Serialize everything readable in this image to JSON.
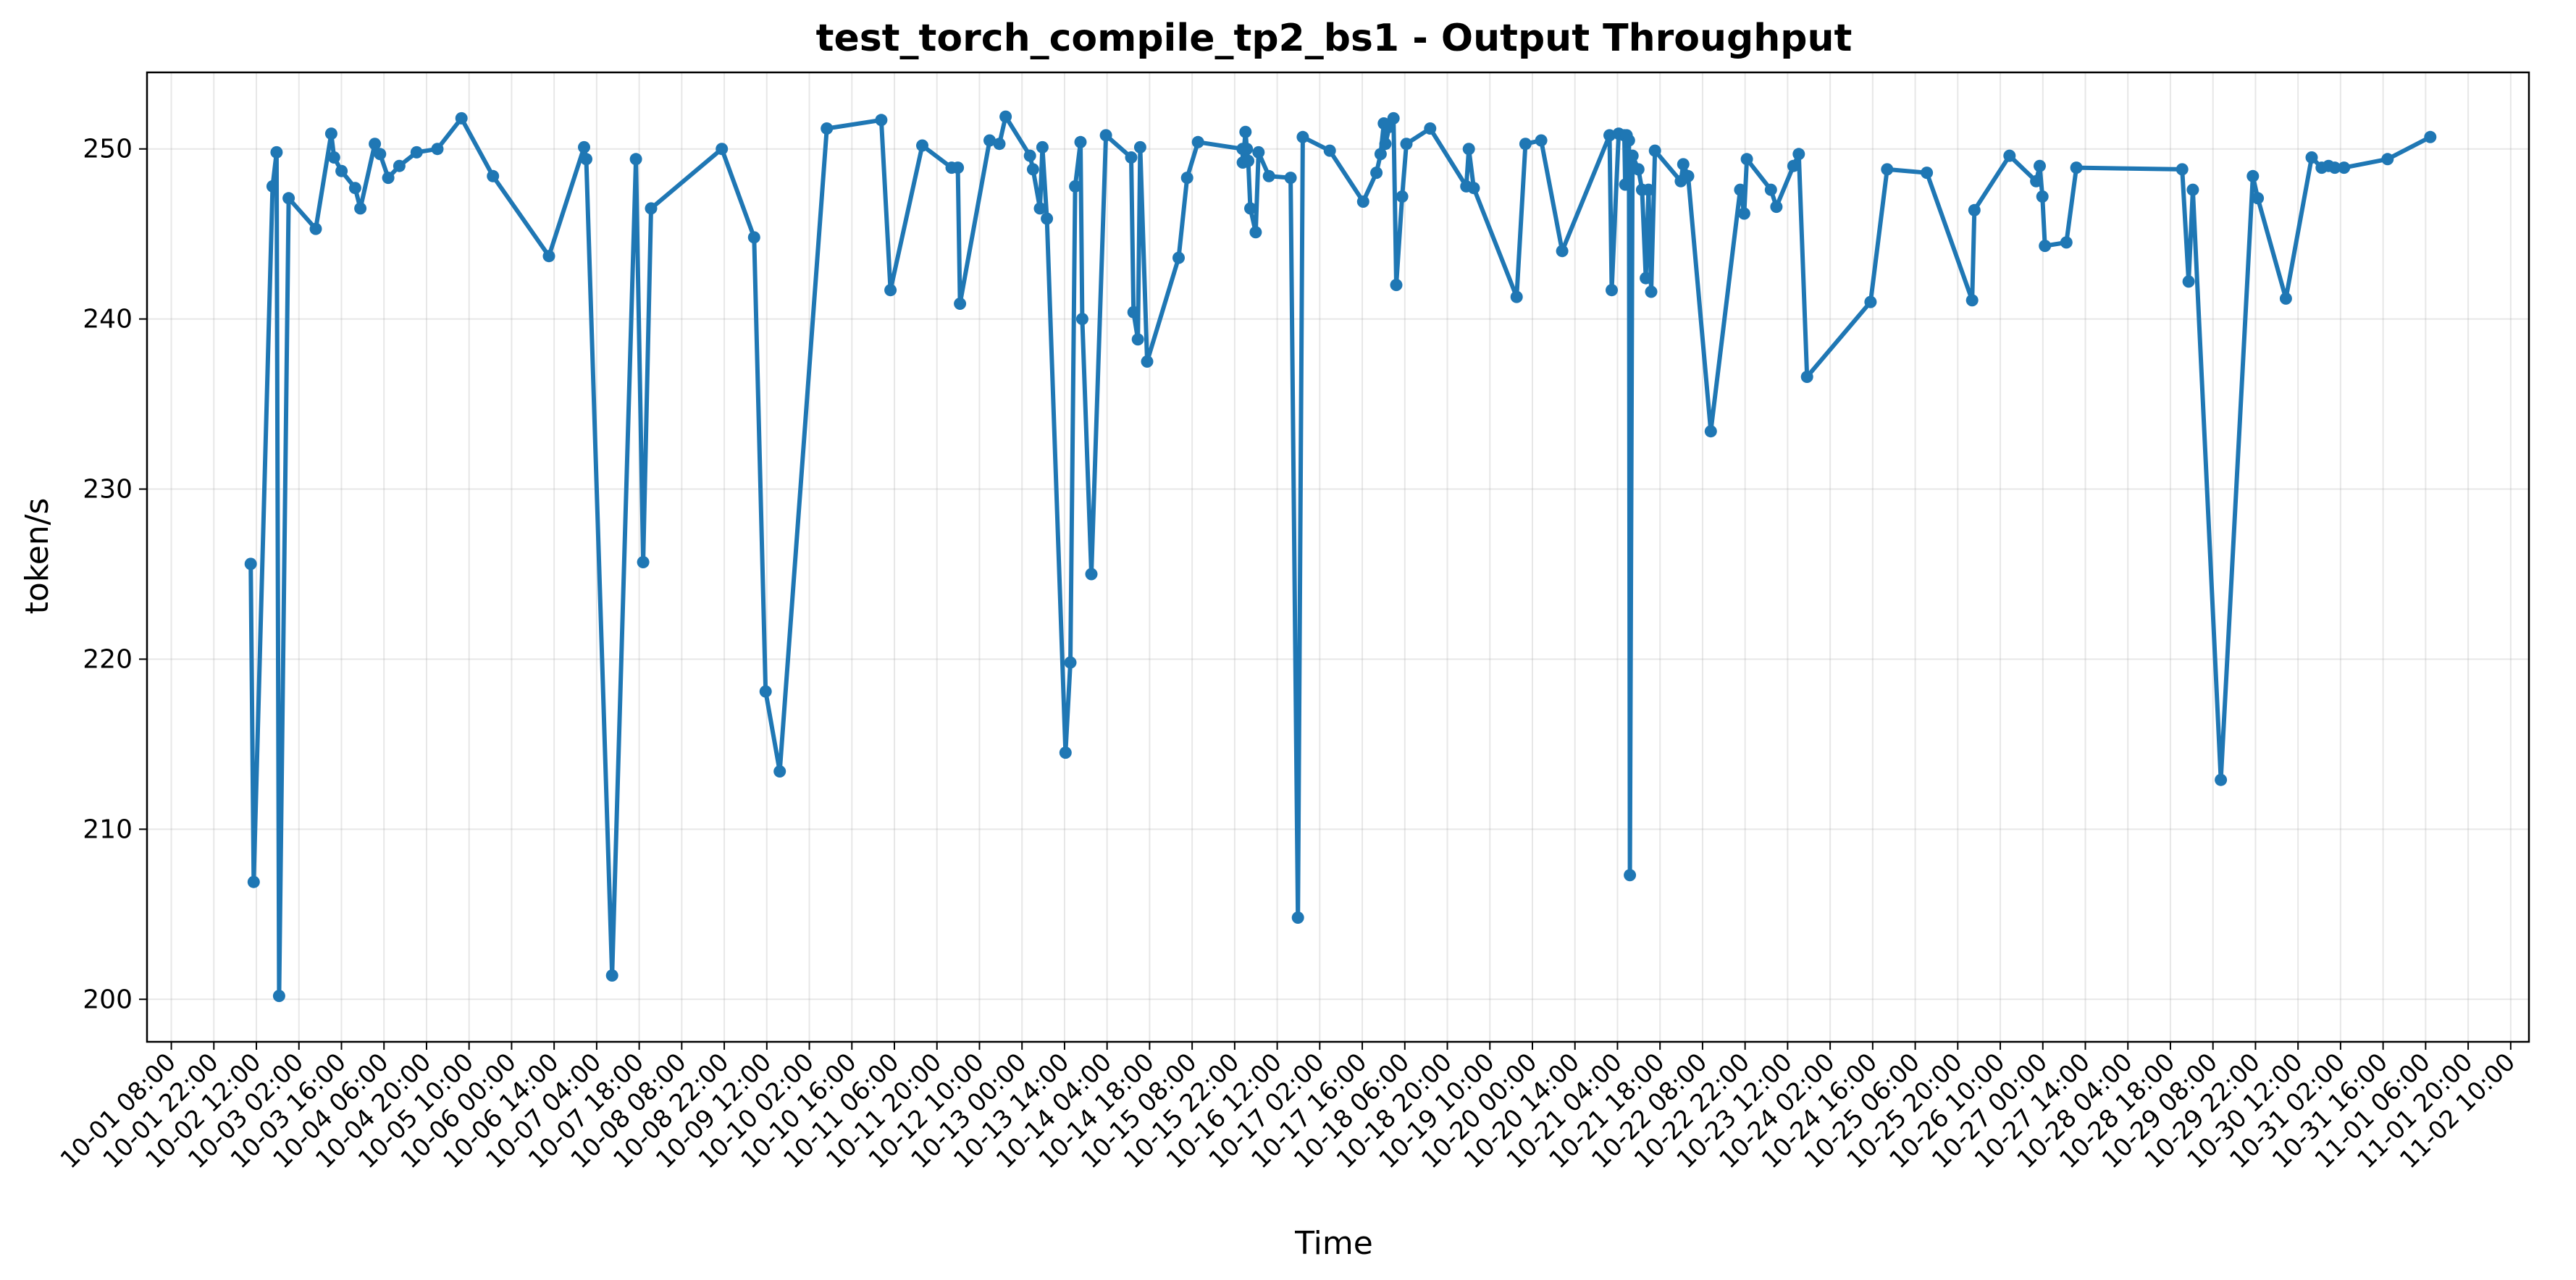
{
  "chart_data": {
    "type": "line",
    "title": "test_torch_compile_tp2_bs1 - Output Throughput",
    "xlabel": "Time",
    "ylabel": "token/s",
    "x_range": [
      "2025-10-01T00:00",
      "2025-11-02T16:00"
    ],
    "ylim": [
      197.5,
      254.5
    ],
    "y_ticks": [
      200,
      210,
      220,
      230,
      240,
      250
    ],
    "grid": true,
    "legend": "none",
    "x_ticks": [
      {
        "x": "2025-10-01T08:00",
        "label": "10-01 08:00"
      },
      {
        "x": "2025-10-01T22:00",
        "label": "10-01 22:00"
      },
      {
        "x": "2025-10-02T12:00",
        "label": "10-02 12:00"
      },
      {
        "x": "2025-10-03T02:00",
        "label": "10-03 02:00"
      },
      {
        "x": "2025-10-03T16:00",
        "label": "10-03 16:00"
      },
      {
        "x": "2025-10-04T06:00",
        "label": "10-04 06:00"
      },
      {
        "x": "2025-10-04T20:00",
        "label": "10-04 20:00"
      },
      {
        "x": "2025-10-05T10:00",
        "label": "10-05 10:00"
      },
      {
        "x": "2025-10-06T00:00",
        "label": "10-06 00:00"
      },
      {
        "x": "2025-10-06T14:00",
        "label": "10-06 14:00"
      },
      {
        "x": "2025-10-07T04:00",
        "label": "10-07 04:00"
      },
      {
        "x": "2025-10-07T18:00",
        "label": "10-07 18:00"
      },
      {
        "x": "2025-10-08T08:00",
        "label": "10-08 08:00"
      },
      {
        "x": "2025-10-08T22:00",
        "label": "10-08 22:00"
      },
      {
        "x": "2025-10-09T12:00",
        "label": "10-09 12:00"
      },
      {
        "x": "2025-10-10T02:00",
        "label": "10-10 02:00"
      },
      {
        "x": "2025-10-10T16:00",
        "label": "10-10 16:00"
      },
      {
        "x": "2025-10-11T06:00",
        "label": "10-11 06:00"
      },
      {
        "x": "2025-10-11T20:00",
        "label": "10-11 20:00"
      },
      {
        "x": "2025-10-12T10:00",
        "label": "10-12 10:00"
      },
      {
        "x": "2025-10-13T00:00",
        "label": "10-13 00:00"
      },
      {
        "x": "2025-10-13T14:00",
        "label": "10-13 14:00"
      },
      {
        "x": "2025-10-14T04:00",
        "label": "10-14 04:00"
      },
      {
        "x": "2025-10-14T18:00",
        "label": "10-14 18:00"
      },
      {
        "x": "2025-10-15T08:00",
        "label": "10-15 08:00"
      },
      {
        "x": "2025-10-15T22:00",
        "label": "10-15 22:00"
      },
      {
        "x": "2025-10-16T12:00",
        "label": "10-16 12:00"
      },
      {
        "x": "2025-10-17T02:00",
        "label": "10-17 02:00"
      },
      {
        "x": "2025-10-17T16:00",
        "label": "10-17 16:00"
      },
      {
        "x": "2025-10-18T06:00",
        "label": "10-18 06:00"
      },
      {
        "x": "2025-10-18T20:00",
        "label": "10-18 20:00"
      },
      {
        "x": "2025-10-19T10:00",
        "label": "10-19 10:00"
      },
      {
        "x": "2025-10-20T00:00",
        "label": "10-20 00:00"
      },
      {
        "x": "2025-10-20T14:00",
        "label": "10-20 14:00"
      },
      {
        "x": "2025-10-21T04:00",
        "label": "10-21 04:00"
      },
      {
        "x": "2025-10-21T18:00",
        "label": "10-21 18:00"
      },
      {
        "x": "2025-10-22T08:00",
        "label": "10-22 08:00"
      },
      {
        "x": "2025-10-22T22:00",
        "label": "10-22 22:00"
      },
      {
        "x": "2025-10-23T12:00",
        "label": "10-23 12:00"
      },
      {
        "x": "2025-10-24T02:00",
        "label": "10-24 02:00"
      },
      {
        "x": "2025-10-24T16:00",
        "label": "10-24 16:00"
      },
      {
        "x": "2025-10-25T06:00",
        "label": "10-25 06:00"
      },
      {
        "x": "2025-10-25T20:00",
        "label": "10-25 20:00"
      },
      {
        "x": "2025-10-26T10:00",
        "label": "10-26 10:00"
      },
      {
        "x": "2025-10-27T00:00",
        "label": "10-27 00:00"
      },
      {
        "x": "2025-10-27T14:00",
        "label": "10-27 14:00"
      },
      {
        "x": "2025-10-28T04:00",
        "label": "10-28 04:00"
      },
      {
        "x": "2025-10-28T18:00",
        "label": "10-28 18:00"
      },
      {
        "x": "2025-10-29T08:00",
        "label": "10-29 08:00"
      },
      {
        "x": "2025-10-29T22:00",
        "label": "10-29 22:00"
      },
      {
        "x": "2025-10-30T12:00",
        "label": "10-30 12:00"
      },
      {
        "x": "2025-10-31T02:00",
        "label": "10-31 02:00"
      },
      {
        "x": "2025-10-31T16:00",
        "label": "10-31 16:00"
      },
      {
        "x": "2025-11-01T06:00",
        "label": "11-01 06:00"
      },
      {
        "x": "2025-11-01T20:00",
        "label": "11-01 20:00"
      },
      {
        "x": "2025-11-02T10:00",
        "label": "11-02 10:00"
      }
    ],
    "series": [
      {
        "color": "#1f77b4",
        "points": [
          [
            "2025-10-02T10:08",
            225.6
          ],
          [
            "2025-10-02T11:07",
            206.9
          ],
          [
            "2025-10-02T17:20",
            247.8
          ],
          [
            "2025-10-02T18:39",
            249.8
          ],
          [
            "2025-10-02T19:29",
            200.2
          ],
          [
            "2025-10-02T22:38",
            247.1
          ],
          [
            "2025-10-03T07:33",
            245.3
          ],
          [
            "2025-10-03T12:39",
            250.9
          ],
          [
            "2025-10-03T13:34",
            249.5
          ],
          [
            "2025-10-03T16:02",
            248.7
          ],
          [
            "2025-10-03T20:31",
            247.7
          ],
          [
            "2025-10-03T22:14",
            246.5
          ],
          [
            "2025-10-04T03:00",
            250.3
          ],
          [
            "2025-10-04T04:43",
            249.7
          ],
          [
            "2025-10-04T07:24",
            248.3
          ],
          [
            "2025-10-04T11:03",
            249.0
          ],
          [
            "2025-10-04T16:45",
            249.8
          ],
          [
            "2025-10-04T23:35",
            250.0
          ],
          [
            "2025-10-05T07:30",
            251.8
          ],
          [
            "2025-10-05T17:52",
            248.4
          ],
          [
            "2025-10-06T12:18",
            243.7
          ],
          [
            "2025-10-06T23:52",
            250.1
          ],
          [
            "2025-10-07T00:34",
            249.4
          ],
          [
            "2025-10-07T09:05",
            201.4
          ],
          [
            "2025-10-07T16:56",
            249.4
          ],
          [
            "2025-10-07T19:18",
            225.7
          ],
          [
            "2025-10-07T21:54",
            246.5
          ],
          [
            "2025-10-08T21:12",
            250.0
          ],
          [
            "2025-10-09T07:49",
            244.8
          ],
          [
            "2025-10-09T11:37",
            218.1
          ],
          [
            "2025-10-09T16:16",
            213.4
          ],
          [
            "2025-10-10T07:45",
            251.2
          ],
          [
            "2025-10-11T01:41",
            251.7
          ],
          [
            "2025-10-11T04:42",
            241.7
          ],
          [
            "2025-10-11T15:11",
            250.2
          ],
          [
            "2025-10-12T00:50",
            248.9
          ],
          [
            "2025-10-12T02:53",
            248.9
          ],
          [
            "2025-10-12T03:35",
            240.9
          ],
          [
            "2025-10-12T13:20",
            250.5
          ],
          [
            "2025-10-12T16:33",
            250.3
          ],
          [
            "2025-10-12T18:36",
            251.9
          ],
          [
            "2025-10-13T02:37",
            249.6
          ],
          [
            "2025-10-13T03:37",
            248.8
          ],
          [
            "2025-10-13T05:55",
            246.5
          ],
          [
            "2025-10-13T06:43",
            250.1
          ],
          [
            "2025-10-13T08:12",
            245.9
          ],
          [
            "2025-10-13T14:20",
            214.5
          ],
          [
            "2025-10-13T15:55",
            219.8
          ],
          [
            "2025-10-13T17:30",
            247.8
          ],
          [
            "2025-10-13T19:15",
            250.4
          ],
          [
            "2025-10-13T19:50",
            240.0
          ],
          [
            "2025-10-13T22:50",
            225.0
          ],
          [
            "2025-10-14T03:37",
            250.8
          ],
          [
            "2025-10-14T11:57",
            249.5
          ],
          [
            "2025-10-14T12:42",
            240.4
          ],
          [
            "2025-10-14T14:09",
            238.8
          ],
          [
            "2025-10-14T14:54",
            250.1
          ],
          [
            "2025-10-14T17:11",
            237.5
          ],
          [
            "2025-10-15T03:34",
            243.6
          ],
          [
            "2025-10-15T06:21",
            248.3
          ],
          [
            "2025-10-15T09:56",
            250.4
          ],
          [
            "2025-10-16T00:37",
            250.0
          ],
          [
            "2025-10-16T00:41",
            249.2
          ],
          [
            "2025-10-16T01:34",
            251.0
          ],
          [
            "2025-10-16T02:01",
            250.0
          ],
          [
            "2025-10-16T02:28",
            249.3
          ],
          [
            "2025-10-16T03:10",
            246.5
          ],
          [
            "2025-10-16T04:55",
            245.1
          ],
          [
            "2025-10-16T05:51",
            249.8
          ],
          [
            "2025-10-16T09:17",
            248.4
          ],
          [
            "2025-10-16T16:25",
            248.3
          ],
          [
            "2025-10-16T18:49",
            204.8
          ],
          [
            "2025-10-16T20:25",
            250.7
          ],
          [
            "2025-10-17T05:18",
            249.9
          ],
          [
            "2025-10-17T16:18",
            246.9
          ],
          [
            "2025-10-17T20:40",
            248.6
          ],
          [
            "2025-10-17T22:02",
            249.7
          ],
          [
            "2025-10-17T23:06",
            251.5
          ],
          [
            "2025-10-17T23:37",
            250.3
          ],
          [
            "2025-10-18T00:56",
            251.3
          ],
          [
            "2025-10-18T02:17",
            251.8
          ],
          [
            "2025-10-18T03:12",
            242.0
          ],
          [
            "2025-10-18T05:07",
            247.2
          ],
          [
            "2025-10-18T06:31",
            250.3
          ],
          [
            "2025-10-18T14:21",
            251.2
          ],
          [
            "2025-10-19T02:15",
            247.8
          ],
          [
            "2025-10-19T03:04",
            250.0
          ],
          [
            "2025-10-19T04:41",
            247.7
          ],
          [
            "2025-10-19T18:48",
            241.3
          ],
          [
            "2025-10-19T21:43",
            250.3
          ],
          [
            "2025-10-20T02:53",
            250.5
          ],
          [
            "2025-10-20T09:48",
            244.0
          ],
          [
            "2025-10-21T01:24",
            250.8
          ],
          [
            "2025-10-21T02:06",
            241.7
          ],
          [
            "2025-10-21T04:24",
            250.9
          ],
          [
            "2025-10-21T06:15",
            250.8
          ],
          [
            "2025-10-21T06:32",
            247.9
          ],
          [
            "2025-10-21T07:01",
            250.8
          ],
          [
            "2025-10-21T07:47",
            250.5
          ],
          [
            "2025-10-21T08:05",
            207.3
          ],
          [
            "2025-10-21T08:57",
            249.6
          ],
          [
            "2025-10-21T10:52",
            248.8
          ],
          [
            "2025-10-21T12:06",
            247.6
          ],
          [
            "2025-10-21T13:20",
            242.4
          ],
          [
            "2025-10-21T14:13",
            247.6
          ],
          [
            "2025-10-21T15:05",
            241.6
          ],
          [
            "2025-10-21T16:20",
            249.9
          ],
          [
            "2025-10-22T00:50",
            248.1
          ],
          [
            "2025-10-22T01:39",
            249.1
          ],
          [
            "2025-10-22T03:15",
            248.4
          ],
          [
            "2025-10-22T10:43",
            233.4
          ],
          [
            "2025-10-22T20:24",
            247.6
          ],
          [
            "2025-10-22T21:42",
            246.2
          ],
          [
            "2025-10-22T22:35",
            249.4
          ],
          [
            "2025-10-23T06:30",
            247.6
          ],
          [
            "2025-10-23T08:18",
            246.6
          ],
          [
            "2025-10-23T13:55",
            249.0
          ],
          [
            "2025-10-23T15:40",
            249.7
          ],
          [
            "2025-10-23T18:24",
            236.6
          ],
          [
            "2025-10-24T15:18",
            241.0
          ],
          [
            "2025-10-24T20:45",
            248.8
          ],
          [
            "2025-10-25T09:49",
            248.6
          ],
          [
            "2025-10-26T00:45",
            241.1
          ],
          [
            "2025-10-26T01:29",
            246.4
          ],
          [
            "2025-10-26T13:02",
            249.6
          ],
          [
            "2025-10-26T21:49",
            248.1
          ],
          [
            "2025-10-26T22:59",
            249.0
          ],
          [
            "2025-10-26T23:52",
            247.2
          ],
          [
            "2025-10-27T00:42",
            244.3
          ],
          [
            "2025-10-27T07:45",
            244.5
          ],
          [
            "2025-10-27T11:02",
            248.9
          ],
          [
            "2025-10-28T21:52",
            248.8
          ],
          [
            "2025-10-28T23:59",
            242.2
          ],
          [
            "2025-10-29T01:22",
            247.6
          ],
          [
            "2025-10-29T10:36",
            212.9
          ],
          [
            "2025-10-29T21:08",
            248.4
          ],
          [
            "2025-10-29T22:45",
            247.1
          ],
          [
            "2025-10-30T08:00",
            241.2
          ],
          [
            "2025-10-30T16:29",
            249.5
          ],
          [
            "2025-10-30T19:47",
            248.9
          ],
          [
            "2025-10-30T22:03",
            249.0
          ],
          [
            "2025-10-31T00:06",
            248.9
          ],
          [
            "2025-10-31T03:08",
            248.9
          ],
          [
            "2025-10-31T17:28",
            249.4
          ],
          [
            "2025-11-01T07:32",
            250.7
          ]
        ]
      }
    ]
  }
}
